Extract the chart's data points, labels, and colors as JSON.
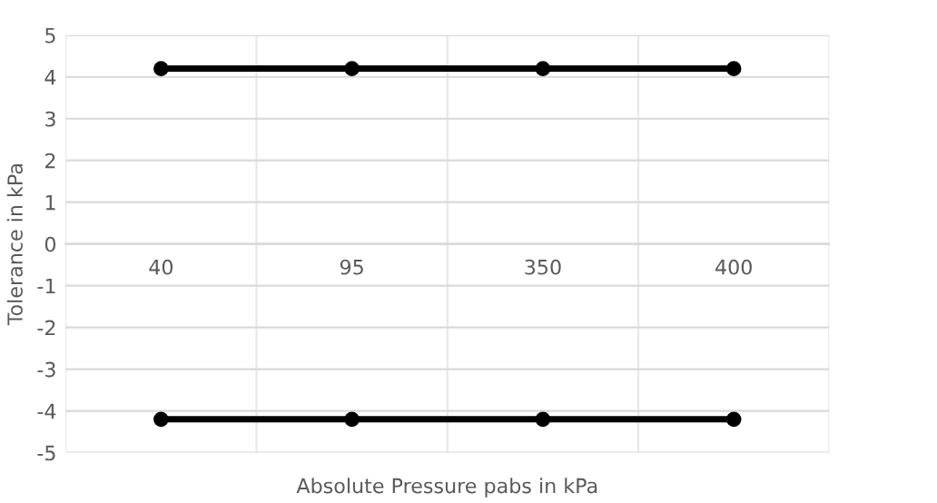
{
  "chart_data": {
    "type": "line",
    "xlabel": "Absolute Pressure pabs in kPa",
    "ylabel": "Tolerance in kPa",
    "categories": [
      "40",
      "95",
      "350",
      "400"
    ],
    "series": [
      {
        "color": "#000000",
        "values": [
          4.2,
          4.2,
          4.2,
          4.2
        ]
      },
      {
        "color": "#000000",
        "values": [
          -4.2,
          -4.2,
          -4.2,
          -4.2
        ]
      }
    ],
    "ylim": [
      -5,
      5
    ],
    "yticks": [
      -5,
      -4,
      -3,
      -2,
      -1,
      0,
      1,
      2,
      3,
      4,
      5
    ],
    "grid": true,
    "marker": "circle",
    "line_style": "solid"
  }
}
